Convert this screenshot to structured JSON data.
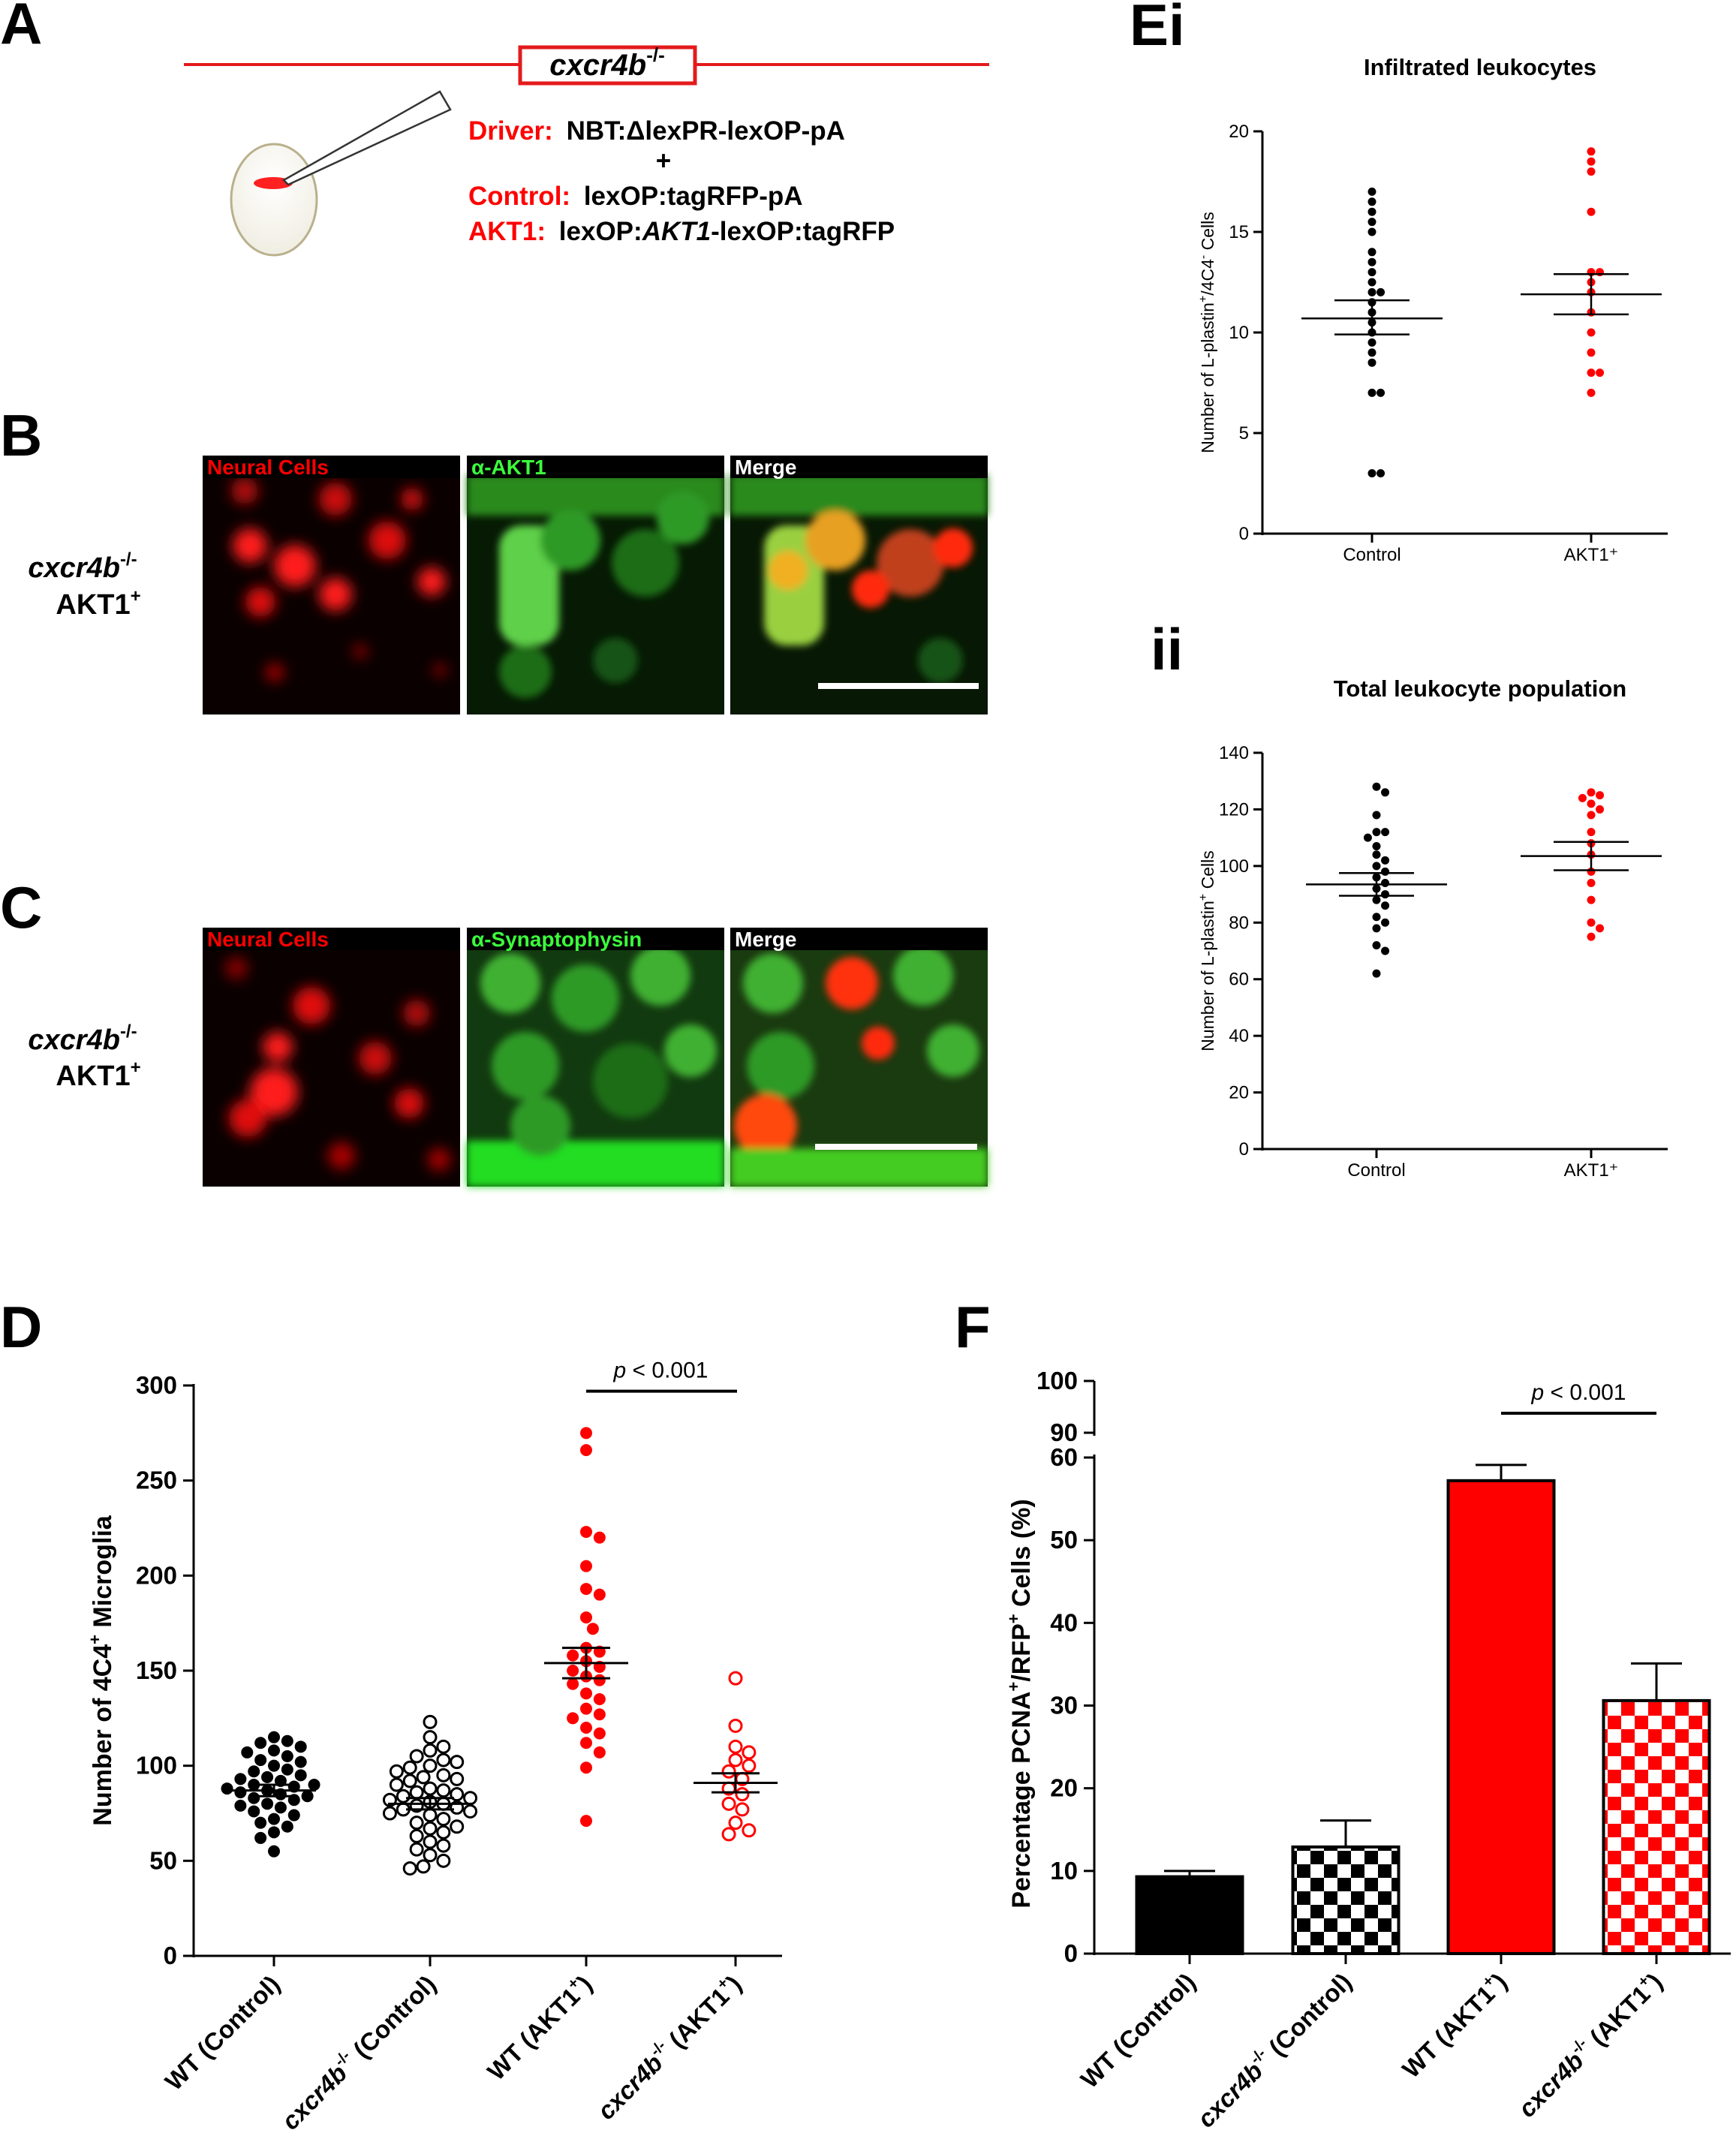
{
  "panel_labels": {
    "A": "A",
    "B": "B",
    "C": "C",
    "D": "D",
    "Ei": "Ei",
    "ii": "ii",
    "F": "F"
  },
  "panelA": {
    "gene": "cxcr4b",
    "gene_sup": "-/-",
    "driver_label": "Driver:",
    "driver_text": "NBT:ΔlexPR-lexOP-pA",
    "plus": "+",
    "control_label": "Control:",
    "control_text": "lexOP:tagRFP-pA",
    "akt1_label": "AKT1:",
    "akt1_text_a": "lexOP:",
    "akt1_text_b": "AKT1",
    "akt1_text_c": "-lexOP:tagRFP"
  },
  "panelB": {
    "row_label_gene": "cxcr4b",
    "row_label_sup": "-/-",
    "row_label_2": "AKT1",
    "row_label_2_sup": "+",
    "panels": [
      "Neural Cells",
      "α-AKT1",
      "Merge"
    ]
  },
  "panelC": {
    "row_label_gene": "cxcr4b",
    "row_label_sup": "-/-",
    "row_label_2": "AKT1",
    "row_label_2_sup": "+",
    "panels": [
      "Neural Cells",
      "α-Synaptophysin",
      "Merge"
    ]
  },
  "colors": {
    "red": "#ff0000",
    "black": "#000000"
  },
  "chart_data": [
    {
      "id": "Ei",
      "type": "scatter",
      "title": "Infiltrated leukocytes",
      "ylabel_parts": [
        "Number of L-plastin",
        "+",
        "/4C4",
        "-",
        " Cells"
      ],
      "categories": [
        "Control",
        "AKT1⁺"
      ],
      "ylim": [
        0,
        20
      ],
      "yticks": [
        0,
        5,
        10,
        15,
        20
      ],
      "series": [
        {
          "color": "#000000",
          "filled": true,
          "values": [
            17,
            16.5,
            16,
            15.5,
            15,
            14,
            13.5,
            13,
            12.5,
            12,
            12,
            11.5,
            11,
            10.5,
            10,
            9.5,
            9,
            8.5,
            7,
            7,
            3,
            3
          ],
          "mean": 10.7,
          "sem_low": 9.9,
          "sem_high": 11.6
        },
        {
          "color": "#ff0000",
          "filled": true,
          "values": [
            19,
            18.5,
            18,
            16,
            13,
            13,
            12.5,
            12,
            11,
            10,
            9,
            8,
            8,
            7
          ],
          "mean": 11.9,
          "sem_low": 10.9,
          "sem_high": 12.9
        }
      ]
    },
    {
      "id": "Eii",
      "type": "scatter",
      "title": "Total leukocyte population",
      "ylabel_parts": [
        "Number of L-plastin",
        "+",
        "",
        "",
        " Cells"
      ],
      "categories": [
        "Control",
        "AKT1⁺"
      ],
      "ylim": [
        0,
        140
      ],
      "yticks": [
        0,
        20,
        40,
        60,
        80,
        100,
        120,
        140
      ],
      "series": [
        {
          "color": "#000000",
          "filled": true,
          "values": [
            128,
            126,
            118,
            112,
            112,
            110,
            107,
            104,
            102,
            100,
            98,
            96,
            94,
            92,
            90,
            88,
            86,
            82,
            80,
            78,
            72,
            70,
            62
          ],
          "mean": 93.5,
          "sem_low": 89.5,
          "sem_high": 97.5
        },
        {
          "color": "#ff0000",
          "filled": true,
          "values": [
            126,
            125,
            124,
            122,
            120,
            118,
            112,
            108,
            104,
            98,
            94,
            88,
            80,
            78,
            75
          ],
          "mean": 103.5,
          "sem_low": 98.5,
          "sem_high": 108.5
        }
      ]
    },
    {
      "id": "D",
      "type": "scatter",
      "title": "",
      "ylabel_parts": [
        "Number of 4C4",
        "+",
        " Microglia"
      ],
      "ylim": [
        0,
        300
      ],
      "yticks": [
        0,
        50,
        100,
        150,
        200,
        250,
        300
      ],
      "categories": [
        {
          "parts": [
            [
              "WT (Control)",
              false
            ]
          ]
        },
        {
          "parts": [
            [
              "cxcr4b",
              true
            ],
            [
              "-/-",
              false,
              "sup"
            ],
            [
              " (Control)",
              false
            ]
          ]
        },
        {
          "parts": [
            [
              "WT (AKT1",
              false
            ],
            [
              "+",
              false,
              "sup"
            ],
            [
              ")",
              false
            ]
          ]
        },
        {
          "parts": [
            [
              "cxcr4b",
              true
            ],
            [
              "-/-",
              false,
              "sup"
            ],
            [
              " (AKT1",
              false
            ],
            [
              "+",
              false,
              "sup"
            ],
            [
              ")",
              false
            ]
          ]
        }
      ],
      "series": [
        {
          "color": "#000000",
          "filled": true,
          "values": [
            115,
            113,
            112,
            110,
            108,
            107,
            105,
            103,
            102,
            100,
            98,
            97,
            95,
            94,
            93,
            92,
            90,
            90,
            89,
            88,
            87,
            86,
            85,
            84,
            83,
            82,
            80,
            79,
            78,
            76,
            74,
            72,
            70,
            68,
            65,
            62,
            55
          ],
          "mean": 87,
          "sem_low": 84,
          "sem_high": 90
        },
        {
          "color": "#000000",
          "filled": false,
          "values": [
            123,
            115,
            110,
            108,
            105,
            103,
            102,
            100,
            99,
            97,
            95,
            94,
            93,
            92,
            90,
            88,
            87,
            86,
            85,
            84,
            83,
            82,
            81,
            80,
            79,
            78,
            77,
            76,
            75,
            74,
            72,
            70,
            68,
            67,
            65,
            63,
            60,
            58,
            56,
            53,
            50,
            47,
            46
          ],
          "mean": 80,
          "sem_low": 77,
          "sem_high": 83
        },
        {
          "color": "#ff0000",
          "filled": true,
          "values": [
            275,
            266,
            223,
            220,
            205,
            193,
            190,
            178,
            172,
            162,
            160,
            158,
            155,
            152,
            150,
            147,
            145,
            143,
            138,
            135,
            130,
            127,
            125,
            120,
            117,
            112,
            107,
            99,
            71
          ],
          "mean": 154,
          "sem_low": 146,
          "sem_high": 162
        },
        {
          "color": "#ff0000",
          "filled": false,
          "values": [
            146,
            121,
            110,
            107,
            103,
            100,
            97,
            93,
            88,
            85,
            80,
            77,
            70,
            66,
            64
          ],
          "mean": 91,
          "sem_low": 86,
          "sem_high": 96
        }
      ],
      "annotation": {
        "p": "p",
        "text": " < 0.001",
        "between": [
          2,
          3
        ],
        "at": 297
      }
    },
    {
      "id": "F",
      "type": "bar",
      "title": "",
      "ylabel_parts": [
        "Percentage PCNA",
        "+",
        "/RFP",
        "+",
        " Cells (%)"
      ],
      "ylim": [
        0,
        100
      ],
      "axis_break": [
        60,
        90
      ],
      "yticks_lower": [
        0,
        10,
        20,
        30,
        40,
        50,
        60
      ],
      "yticks_upper": [
        90,
        100
      ],
      "categories": [
        {
          "parts": [
            [
              "WT (Control)",
              false
            ]
          ]
        },
        {
          "parts": [
            [
              "cxcr4b",
              true
            ],
            [
              "-/-",
              false,
              "sup"
            ],
            [
              " (Control)",
              false
            ]
          ]
        },
        {
          "parts": [
            [
              "WT (AKT1",
              false
            ],
            [
              "+",
              false,
              "sup"
            ],
            [
              ")",
              false
            ]
          ]
        },
        {
          "parts": [
            [
              "cxcr4b",
              true
            ],
            [
              "-/-",
              false,
              "sup"
            ],
            [
              " (AKT1",
              false
            ],
            [
              "+",
              false,
              "sup"
            ],
            [
              ")",
              false
            ]
          ]
        }
      ],
      "values": [
        9.3,
        12.9,
        57.2,
        30.6
      ],
      "errors": [
        0.7,
        3.2,
        1.9,
        4.5
      ],
      "fills": [
        "black",
        "checker-black",
        "red",
        "checker-red"
      ],
      "annotation": {
        "p": "p",
        "text": " < 0.001",
        "between": [
          2,
          3
        ]
      }
    }
  ]
}
